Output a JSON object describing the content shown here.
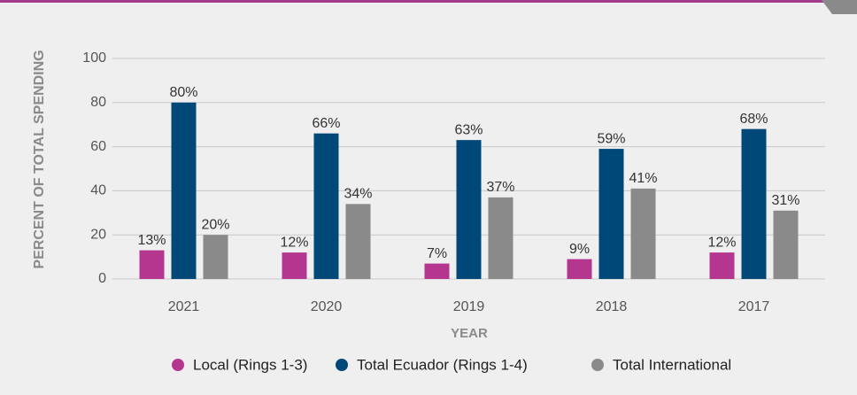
{
  "chart_data": {
    "type": "bar",
    "categories": [
      "2021",
      "2020",
      "2019",
      "2018",
      "2017"
    ],
    "series": [
      {
        "name": "Local (Rings 1-3)",
        "color": "#b5368f",
        "values": [
          13,
          12,
          7,
          9,
          12
        ],
        "value_labels": [
          "13%",
          "12%",
          "7%",
          "9%",
          "12%"
        ]
      },
      {
        "name": "Total Ecuador (Rings 1-4)",
        "color": "#004878",
        "values": [
          80,
          66,
          63,
          59,
          68
        ],
        "value_labels": [
          "80%",
          "66%",
          "63%",
          "59%",
          "68%"
        ]
      },
      {
        "name": "Total International",
        "color": "#8a8a8a",
        "values": [
          20,
          34,
          37,
          41,
          31
        ],
        "value_labels": [
          "20%",
          "34%",
          "37%",
          "41%",
          "31%"
        ]
      }
    ],
    "ylim": [
      0,
      100
    ],
    "yticks": [
      0,
      20,
      40,
      60,
      80,
      100
    ],
    "grid": true,
    "xlabel": "YEAR",
    "ylabel": "PERCENT OF TOTAL SPENDING",
    "legend": "bottom"
  }
}
